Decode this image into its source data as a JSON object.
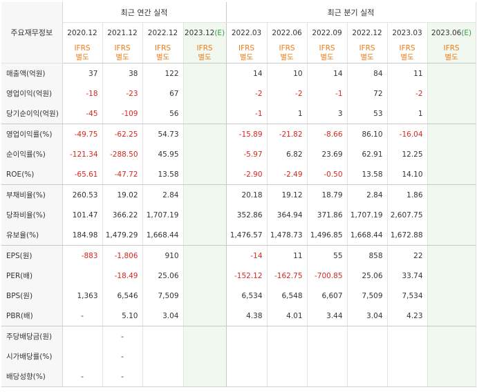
{
  "header": {
    "item_label": "주요재무정보",
    "annual_title": "최근 연간 실적",
    "quarter_title": "최근 분기 실적",
    "ifrs_top": "IFRS",
    "ifrs_bottom": "별도",
    "est_mark": "(E)"
  },
  "annual_periods": [
    "2020.12",
    "2021.12",
    "2022.12",
    "2023.12"
  ],
  "quarter_periods": [
    "2022.03",
    "2022.06",
    "2022.09",
    "2022.12",
    "2023.03",
    "2023.06"
  ],
  "rows": [
    {
      "label": "매출액(억원)",
      "values": [
        "37",
        "38",
        "122",
        "",
        "14",
        "10",
        "14",
        "84",
        "11",
        ""
      ]
    },
    {
      "label": "영업이익(억원)",
      "values": [
        "-18",
        "-23",
        "67",
        "",
        "-2",
        "-2",
        "-1",
        "72",
        "-2",
        ""
      ]
    },
    {
      "label": "당기순이익(억원)",
      "values": [
        "-45",
        "-109",
        "56",
        "",
        "-1",
        "1",
        "3",
        "53",
        "1",
        ""
      ]
    },
    {
      "label": "영업이익률(%)",
      "values": [
        "-49.75",
        "-62.25",
        "54.73",
        "",
        "-15.89",
        "-21.82",
        "-8.66",
        "86.10",
        "-16.04",
        ""
      ]
    },
    {
      "label": "순이익률(%)",
      "values": [
        "-121.34",
        "-288.50",
        "45.95",
        "",
        "-5.97",
        "6.82",
        "23.69",
        "62.91",
        "12.25",
        ""
      ]
    },
    {
      "label": "ROE(%)",
      "values": [
        "-65.61",
        "-47.72",
        "13.58",
        "",
        "-2.90",
        "-2.49",
        "-0.50",
        "13.58",
        "14.10",
        ""
      ]
    },
    {
      "label": "부채비율(%)",
      "values": [
        "260.53",
        "19.02",
        "2.84",
        "",
        "20.18",
        "19.12",
        "18.79",
        "2.84",
        "1.86",
        ""
      ]
    },
    {
      "label": "당좌비율(%)",
      "values": [
        "101.47",
        "366.22",
        "1,707.19",
        "",
        "352.86",
        "364.94",
        "371.86",
        "1,707.19",
        "2,607.75",
        ""
      ]
    },
    {
      "label": "유보율(%)",
      "values": [
        "184.98",
        "1,479.29",
        "1,668.44",
        "",
        "1,476.57",
        "1,478.73",
        "1,496.85",
        "1,668.44",
        "1,672.88",
        ""
      ]
    },
    {
      "label": "EPS(원)",
      "values": [
        "-883",
        "-1,806",
        "910",
        "",
        "-14",
        "11",
        "55",
        "858",
        "22",
        ""
      ]
    },
    {
      "label": "PER(배)",
      "values": [
        "",
        "-18.49",
        "25.06",
        "",
        "-152.12",
        "-162.75",
        "-700.85",
        "25.06",
        "33.74",
        ""
      ]
    },
    {
      "label": "BPS(원)",
      "values": [
        "1,363",
        "6,546",
        "7,509",
        "",
        "6,534",
        "6,548",
        "6,607",
        "7,509",
        "7,534",
        ""
      ]
    },
    {
      "label": "PBR(배)",
      "values": [
        "-",
        "5.10",
        "3.04",
        "",
        "4.38",
        "4.01",
        "3.44",
        "3.04",
        "4.23",
        ""
      ]
    },
    {
      "label": "주당배당금(원)",
      "values": [
        "",
        "-",
        "",
        "",
        "",
        "",
        "",
        "",
        "",
        ""
      ]
    },
    {
      "label": "시가배당률(%)",
      "values": [
        "",
        "-",
        "",
        "",
        "",
        "",
        "",
        "",
        "",
        ""
      ]
    },
    {
      "label": "배당성향(%)",
      "values": [
        "-",
        "-",
        "",
        "",
        "",
        "",
        "",
        "",
        "",
        ""
      ]
    }
  ],
  "group_end_rows": [
    2,
    5,
    8,
    12
  ],
  "colors": {
    "negative": "#d9261c",
    "ifrs": "#f07b16",
    "estimate_bg": "#f0f8ef",
    "label_bg": "#f7f7f7"
  }
}
